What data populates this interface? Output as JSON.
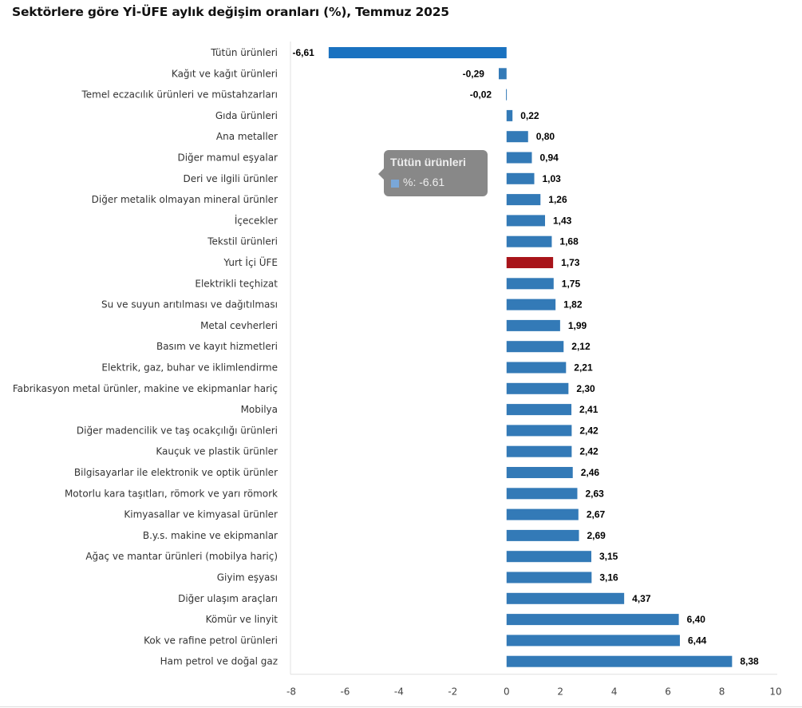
{
  "chart_data": {
    "type": "bar",
    "orientation": "horizontal",
    "title": "Sektörlere göre Yİ-ÜFE aylık değişim oranları (%), Temmuz 2025",
    "xlabel": "",
    "ylabel": "",
    "xlim": [
      -8,
      10
    ],
    "x_ticks": [
      "-8",
      "-6",
      "-4",
      "-2",
      "0",
      "2",
      "4",
      "6",
      "8",
      "10"
    ],
    "x_tick_values": [
      -8,
      -6,
      -4,
      -2,
      0,
      2,
      4,
      6,
      8,
      10
    ],
    "grid": false,
    "legend": "none",
    "colors": {
      "default": "#337ab7",
      "highlight": "#a8141a",
      "hovered": "#1a72c0"
    },
    "categories": [
      "Tütün ürünleri",
      "Kağıt ve kağıt ürünleri",
      "Temel eczacılık ürünleri ve müstahzarları",
      "Gıda ürünleri",
      "Ana metaller",
      "Diğer mamul eşyalar",
      "Deri ve ilgili ürünler",
      "Diğer metalik olmayan mineral ürünler",
      "İçecekler",
      "Tekstil ürünleri",
      "Yurt İçi ÜFE",
      "Elektrikli teçhizat",
      "Su ve suyun arıtılması ve dağıtılması",
      "Metal cevherleri",
      "Basım ve kayıt hizmetleri",
      "Elektrik, gaz, buhar ve iklimlendirme",
      "Fabrikasyon metal ürünler, makine ve ekipmanlar hariç",
      "Mobilya",
      "Diğer madencilik ve taş ocakçılığı ürünleri",
      "Kauçuk ve plastik ürünler",
      "Bilgisayarlar ile elektronik ve optik ürünler",
      "Motorlu kara taşıtları, römork ve yarı römork",
      "Kimyasallar ve kimyasal ürünler",
      "B.y.s. makine ve ekipmanlar",
      "Ağaç ve mantar ürünleri (mobilya hariç)",
      "Giyim eşyası",
      "Diğer ulaşım araçları",
      "Kömür ve linyit",
      "Kok ve rafine petrol ürünleri",
      "Ham petrol ve doğal gaz"
    ],
    "values": [
      -6.61,
      -0.29,
      -0.02,
      0.22,
      0.8,
      0.94,
      1.03,
      1.26,
      1.43,
      1.68,
      1.73,
      1.75,
      1.82,
      1.99,
      2.12,
      2.21,
      2.3,
      2.41,
      2.42,
      2.42,
      2.46,
      2.63,
      2.67,
      2.69,
      3.15,
      3.16,
      4.37,
      6.4,
      6.44,
      8.38
    ],
    "value_labels": [
      "-6,61",
      "-0,29",
      "-0,02",
      "0,22",
      "0,80",
      "0,94",
      "1,03",
      "1,26",
      "1,43",
      "1,68",
      "1,73",
      "1,75",
      "1,82",
      "1,99",
      "2,12",
      "2,21",
      "2,30",
      "2,41",
      "2,42",
      "2,42",
      "2,46",
      "2,63",
      "2,67",
      "2,69",
      "3,15",
      "3,16",
      "4,37",
      "6,40",
      "6,44",
      "8,38"
    ],
    "highlight_category": "Yurt İçi ÜFE",
    "hovered_category": "Tütün ürünleri"
  },
  "tooltip": {
    "title": "Tütün ürünleri",
    "value_text": "%: -6.61"
  }
}
